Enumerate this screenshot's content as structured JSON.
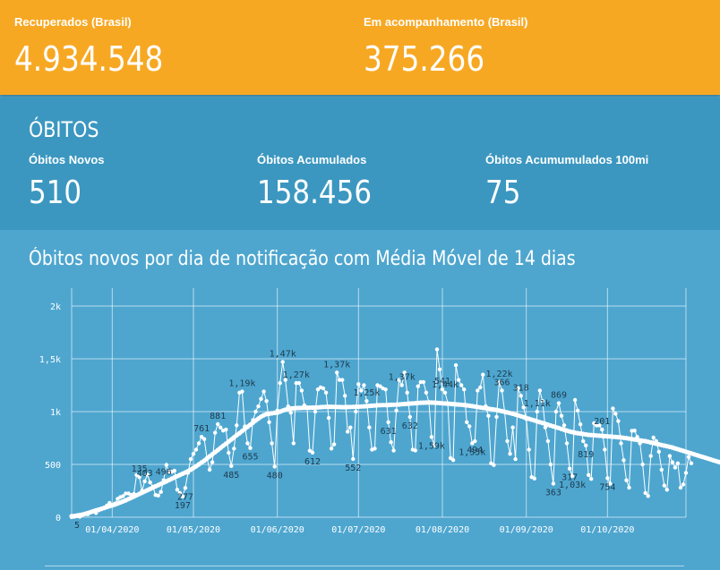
{
  "top": {
    "recuperados_label": "Recuperados (Brasil)",
    "recuperados_value": "4.934.548",
    "acompanhamento_label": "Em acompanhamento (Brasil)",
    "acompanhamento_value": "375.266"
  },
  "obitos": {
    "title": "ÓBITOS",
    "novos_label": "Óbitos Novos",
    "novos_value": "510",
    "acumulados_label": "Óbitos Acumulados",
    "acumulados_value": "158.456",
    "acum100_label": "Óbitos Acumumulados 100mi",
    "acum100_value": "75"
  },
  "colors": {
    "top_bar": "#f7a823",
    "obitos_panel": "#3b97c0",
    "chart_panel": "#4ea6cf"
  },
  "chart_data": {
    "type": "line",
    "title": "Óbitos novos por dia de notificação com Média Móvel de 14 dias",
    "ylim": [
      0,
      2000
    ],
    "y_ticks": [
      0,
      500,
      1000,
      1500,
      2000
    ],
    "y_tick_labels": [
      "0",
      "500",
      "1k",
      "1,5k",
      "2k"
    ],
    "x_start": "2020-03-17",
    "x_end": "2020-10-30",
    "x_tick_labels": [
      {
        "date": "2020-04-01",
        "label": "01/04/2020"
      },
      {
        "date": "2020-05-01",
        "label": "01/05/2020"
      },
      {
        "date": "2020-06-01",
        "label": "01/06/2020"
      },
      {
        "date": "2020-07-01",
        "label": "01/07/2020"
      },
      {
        "date": "2020-08-01",
        "label": "01/08/2020"
      },
      {
        "date": "2020-09-01",
        "label": "01/09/2020"
      },
      {
        "date": "2020-10-01",
        "label": "01/10/2020"
      }
    ],
    "grid": true,
    "series": [
      {
        "values": [
          1,
          4,
          10,
          4,
          20,
          30,
          28,
          45,
          55,
          40,
          65,
          75,
          90,
          110,
          135,
          115,
          130,
          175,
          190,
          200,
          225,
          225,
          210,
          220,
          400,
          380,
          250,
          340,
          403,
          330,
          290,
          210,
          205,
          240,
          350,
          496,
          430,
          430,
          440,
          260,
          230,
          197,
          277,
          420,
          550,
          600,
          640,
          700,
          761,
          740,
          560,
          450,
          520,
          800,
          881,
          850,
          820,
          830,
          610,
          485,
          650,
          870,
          1180,
          1190,
          860,
          700,
          655,
          920,
          1000,
          1050,
          1120,
          1190,
          1100,
          900,
          700,
          480,
          1010,
          1270,
          1470,
          1300,
          1050,
          990,
          700,
          1270,
          1270,
          1200,
          1060,
          1040,
          630,
          612,
          1000,
          1210,
          1230,
          1220,
          1180,
          940,
          650,
          690,
          1370,
          1300,
          1300,
          1150,
          810,
          850,
          552,
          1000,
          1260,
          1200,
          1250,
          1100,
          850,
          640,
          650,
          1250,
          1240,
          1220,
          1210,
          900,
          710,
          631,
          1010,
          1300,
          1250,
          1370,
          1180,
          950,
          640,
          632,
          1240,
          1280,
          1280,
          1180,
          1090,
          760,
          680,
          1590,
          1400,
          1210,
          1180,
          1080,
          560,
          541,
          1440,
          1300,
          1250,
          1210,
          900,
          860,
          700,
          720,
          1200,
          1230,
          1350,
          1050,
          960,
          510,
          494,
          950,
          1280,
          1200,
          1000,
          720,
          600,
          850,
          550,
          1220,
          1150,
          1040,
          930,
          640,
          380,
          366,
          1000,
          1200,
          1100,
          850,
          720,
          500,
          318,
          1000,
          1080,
          960,
          870,
          700,
          460,
          390,
          1110,
          1010,
          880,
          720,
          680,
          400,
          363,
          890,
          869,
          870,
          830,
          640,
          370,
          317,
          1030,
          980,
          910,
          700,
          540,
          350,
          280,
          819,
          820,
          760,
          700,
          500,
          230,
          201,
          580,
          754,
          720,
          620,
          450,
          300,
          260,
          580,
          520,
          470,
          510,
          280,
          310,
          420,
          570,
          510
        ],
        "moving_average": [
          10,
          12,
          16,
          20,
          25,
          32,
          40,
          48,
          56,
          64,
          72,
          80,
          88,
          96,
          104,
          112,
          120,
          130,
          140,
          150,
          160,
          172,
          184,
          196,
          208,
          220,
          232,
          244,
          256,
          268,
          280,
          292,
          304,
          316,
          328,
          340,
          352,
          364,
          376,
          388,
          400,
          412,
          424,
          436,
          450,
          466,
          482,
          500,
          518,
          536,
          556,
          576,
          596,
          616,
          636,
          656,
          676,
          696,
          716,
          736,
          756,
          776,
          796,
          816,
          836,
          856,
          876,
          896,
          916,
          934,
          952,
          966,
          976,
          980,
          984,
          988,
          990,
          1000,
          1010,
          1018,
          1025,
          1030,
          1032,
          1034,
          1035,
          1036,
          1037,
          1037,
          1037,
          1038,
          1038,
          1040,
          1042,
          1044,
          1045,
          1046,
          1046,
          1045,
          1044,
          1043,
          1042,
          1042,
          1043,
          1044,
          1045,
          1046,
          1047,
          1048,
          1050,
          1052,
          1054,
          1056,
          1058,
          1060,
          1061,
          1062,
          1062,
          1063,
          1064,
          1065,
          1066,
          1068,
          1070,
          1072,
          1074,
          1076,
          1078,
          1080,
          1082,
          1084,
          1085,
          1086,
          1087,
          1086,
          1085,
          1083,
          1081,
          1079,
          1077,
          1075,
          1073,
          1071,
          1069,
          1067,
          1065,
          1062,
          1059,
          1056,
          1052,
          1048,
          1044,
          1040,
          1036,
          1032,
          1028,
          1024,
          1020,
          1016,
          1010,
          1004,
          998,
          992,
          986,
          980,
          972,
          964,
          956,
          948,
          940,
          932,
          924,
          916,
          908,
          900,
          892,
          884,
          876,
          868,
          860,
          852,
          844,
          836,
          828,
          820,
          812,
          806,
          800,
          796,
          792,
          788,
          784,
          780,
          778,
          776,
          774,
          772,
          770,
          768,
          766,
          764,
          762,
          760,
          758,
          756,
          752,
          748,
          744,
          740,
          736,
          732,
          728,
          724,
          720,
          714,
          708,
          702,
          696,
          690,
          684,
          678,
          672,
          666,
          660,
          652,
          644,
          636,
          628,
          620,
          612,
          604,
          596,
          588,
          580,
          572,
          564,
          556,
          548,
          540,
          532,
          524,
          516,
          510
        ]
      }
    ],
    "annotations": [
      {
        "i": 2,
        "label": "5"
      },
      {
        "i": 25,
        "label": "135"
      },
      {
        "i": 27,
        "label": "403"
      },
      {
        "i": 34,
        "label": "496"
      },
      {
        "i": 41,
        "label": "197"
      },
      {
        "i": 42,
        "label": "277"
      },
      {
        "i": 48,
        "label": "761"
      },
      {
        "i": 54,
        "label": "881"
      },
      {
        "i": 59,
        "label": "485"
      },
      {
        "i": 63,
        "label": "1,19k"
      },
      {
        "i": 66,
        "label": "655"
      },
      {
        "i": 75,
        "label": "480"
      },
      {
        "i": 78,
        "label": "1,47k"
      },
      {
        "i": 83,
        "label": "1,27k"
      },
      {
        "i": 89,
        "label": "612"
      },
      {
        "i": 98,
        "label": "1,37k"
      },
      {
        "i": 104,
        "label": "552"
      },
      {
        "i": 109,
        "label": "1,25k"
      },
      {
        "i": 117,
        "label": "631"
      },
      {
        "i": 122,
        "label": "1,37k"
      },
      {
        "i": 125,
        "label": "632"
      },
      {
        "i": 133,
        "label": "1,59k"
      },
      {
        "i": 137,
        "label": "541"
      },
      {
        "i": 138,
        "label": "1,44k"
      },
      {
        "i": 148,
        "label": "1,35k"
      },
      {
        "i": 149,
        "label": "494"
      },
      {
        "i": 158,
        "label": "1,22k"
      },
      {
        "i": 159,
        "label": "366"
      },
      {
        "i": 166,
        "label": "318"
      },
      {
        "i": 172,
        "label": "1,11k"
      },
      {
        "i": 178,
        "label": "363"
      },
      {
        "i": 180,
        "label": "869"
      },
      {
        "i": 184,
        "label": "317"
      },
      {
        "i": 185,
        "label": "1,03k"
      },
      {
        "i": 190,
        "label": "819"
      },
      {
        "i": 196,
        "label": "201"
      },
      {
        "i": 198,
        "label": "754"
      }
    ]
  }
}
